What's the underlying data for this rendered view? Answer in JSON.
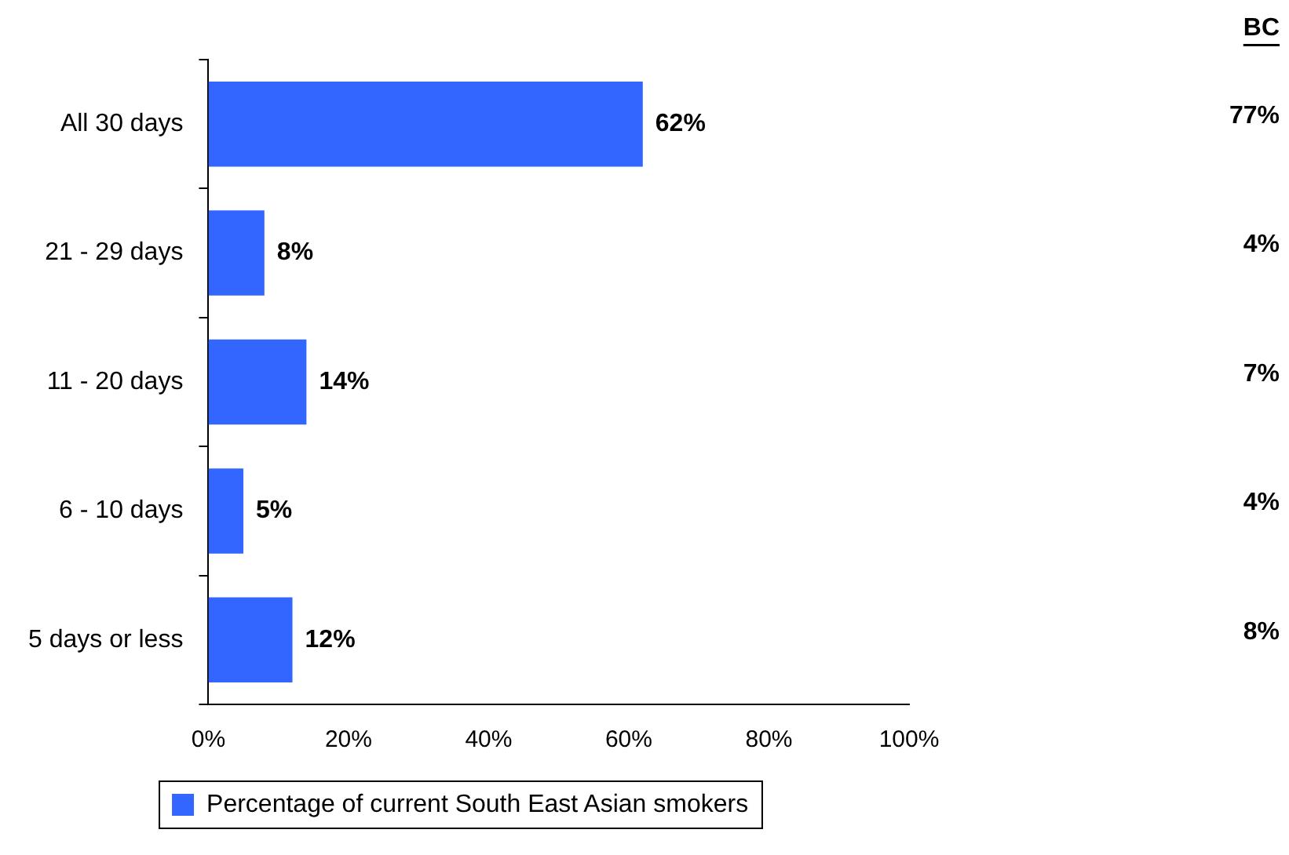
{
  "chart_data": {
    "type": "bar",
    "orientation": "horizontal",
    "categories": [
      "All 30 days",
      "21 - 29 days",
      "11 - 20 days",
      "6 - 10 days",
      "5 days or less"
    ],
    "series": [
      {
        "name": "Percentage of current South East Asian smokers",
        "color": "#3366ff",
        "values": [
          62,
          8,
          14,
          5,
          12
        ],
        "value_labels": [
          "62%",
          "8%",
          "14%",
          "5%",
          "12%"
        ]
      }
    ],
    "xlim": [
      0,
      100
    ],
    "xticks": [
      {
        "value": 0,
        "label": "0%"
      },
      {
        "value": 20,
        "label": "20%"
      },
      {
        "value": 40,
        "label": "40%"
      },
      {
        "value": 60,
        "label": "60%"
      },
      {
        "value": 80,
        "label": "80%"
      },
      {
        "value": 100,
        "label": "100%"
      }
    ],
    "grid": false,
    "legend": "bottom",
    "annotations": [
      "BC",
      "77%",
      "4%",
      "7%",
      "4%",
      "8%"
    ]
  }
}
